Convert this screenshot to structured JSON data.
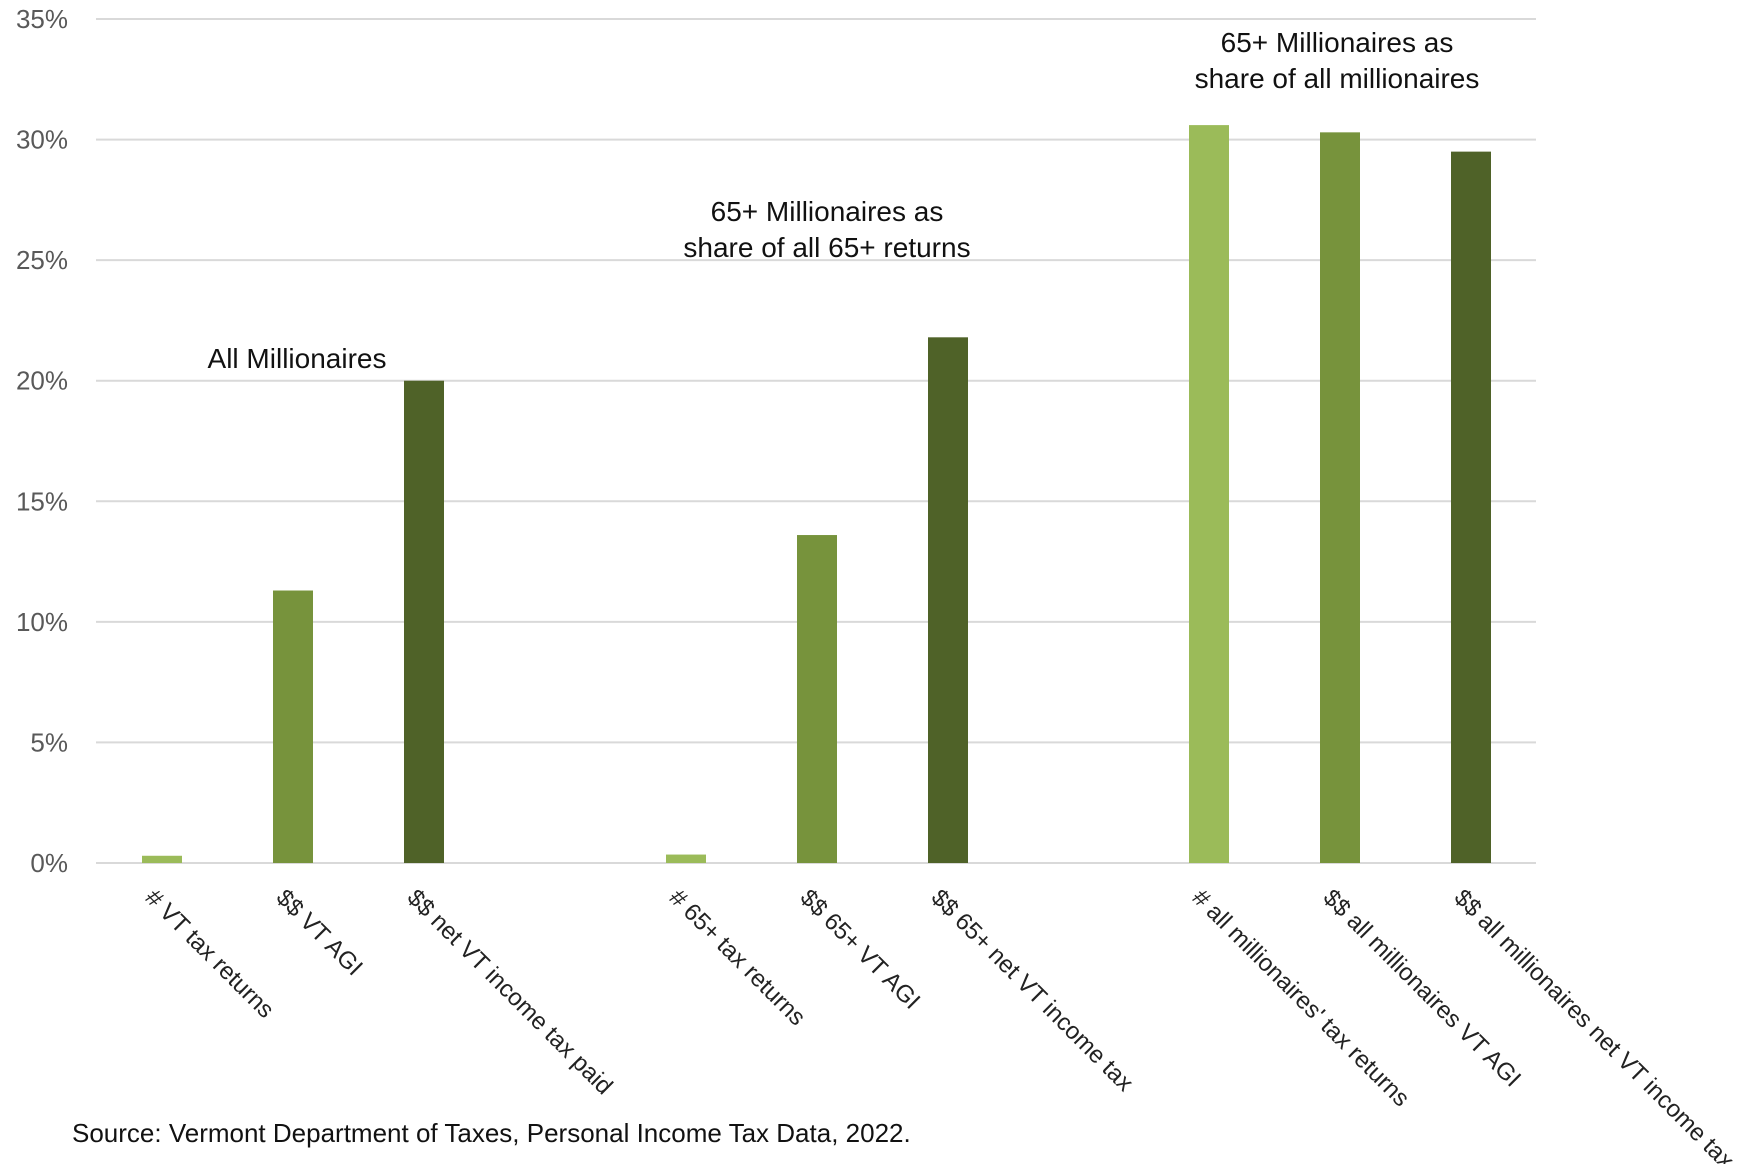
{
  "chart_data": {
    "type": "bar",
    "ylim": [
      0,
      35
    ],
    "yticks": [
      "0%",
      "5%",
      "10%",
      "15%",
      "20%",
      "25%",
      "30%",
      "35%"
    ],
    "grid": true,
    "bars": [
      {
        "category": "# VT tax returns",
        "value": 0.3,
        "color": "#9BBB59"
      },
      {
        "category": "$$ VT AGI",
        "value": 11.3,
        "color": "#77933C"
      },
      {
        "category": "$$ net VT income tax paid",
        "value": 20.0,
        "color": "#4F6228"
      },
      {
        "category": "# 65+ tax returns",
        "value": 0.35,
        "color": "#9BBB59"
      },
      {
        "category": "$$ 65+ VT AGI",
        "value": 13.6,
        "color": "#77933C"
      },
      {
        "category": "$$ 65+ net VT income tax",
        "value": 21.8,
        "color": "#4F6228"
      },
      {
        "category": "# all millionaires' tax returns",
        "value": 30.6,
        "color": "#9BBB59"
      },
      {
        "category": "$$ all millionaires VT AGI",
        "value": 30.3,
        "color": "#77933C"
      },
      {
        "category": "$$ all millionaires net VT income tax",
        "value": 29.5,
        "color": "#4F6228"
      }
    ],
    "annotations": [
      {
        "lines": [
          "All Millionaires"
        ]
      },
      {
        "lines": [
          "65+ Millionaires as",
          "share of all 65+ returns"
        ]
      },
      {
        "lines": [
          "65+ Millionaires as",
          "share of all millionaires"
        ]
      }
    ],
    "source": "Source: Vermont Department of Taxes, Personal Income Tax Data, 2022."
  }
}
